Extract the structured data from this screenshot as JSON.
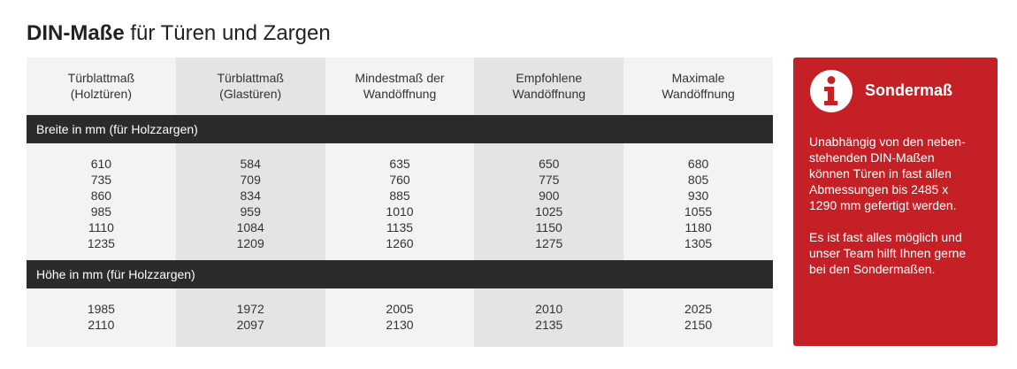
{
  "title": {
    "bold": "DIN-Maße",
    "rest": " für Türen und Zargen"
  },
  "columns": [
    [
      "Türblattmaß",
      "(Holztüren)"
    ],
    [
      "Türblattmaß",
      "(Glastüren)"
    ],
    [
      "Mindestmaß der",
      "Wandöffnung"
    ],
    [
      "Empfohlene",
      "Wandöffnung"
    ],
    [
      "Maximale",
      "Wandöffnung"
    ]
  ],
  "sections": {
    "breite": {
      "label": "Breite in mm (für Holzzargen)",
      "values": [
        [
          "610",
          "735",
          "860",
          "985",
          "1110",
          "1235"
        ],
        [
          "584",
          "709",
          "834",
          "959",
          "1084",
          "1209"
        ],
        [
          "635",
          "760",
          "885",
          "1010",
          "1135",
          "1260"
        ],
        [
          "650",
          "775",
          "900",
          "1025",
          "1150",
          "1275"
        ],
        [
          "680",
          "805",
          "930",
          "1055",
          "1180",
          "1305"
        ]
      ]
    },
    "hoehe": {
      "label": "Höhe in mm (für Holzzargen)",
      "values": [
        [
          "1985",
          "2110"
        ],
        [
          "1972",
          "2097"
        ],
        [
          "2005",
          "2130"
        ],
        [
          "2010",
          "2135"
        ],
        [
          "2025",
          "2150"
        ]
      ]
    }
  },
  "sonder": {
    "icon": "info-icon",
    "title": "Sondermaß",
    "para1": [
      "Unabhängig von den neben-",
      "stehenden DIN-Maßen",
      "können Türen in fast allen",
      "Abmessungen bis 2485 x",
      "1290 mm gefertigt werden."
    ],
    "para2": [
      "Es ist fast alles möglich und",
      "unser Team hilft Ihnen gerne",
      "bei den Sondermaßen."
    ]
  },
  "colors": {
    "accent": "#c52026",
    "bar": "#2b2b2b",
    "light": "#f3f3f3",
    "dark": "#e4e4e4"
  }
}
